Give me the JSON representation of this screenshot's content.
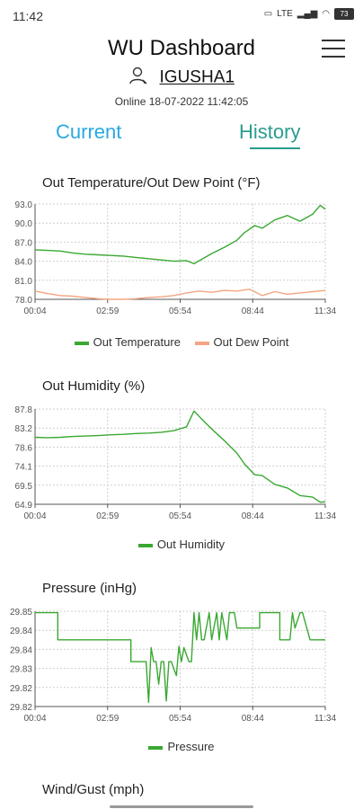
{
  "status_bar": {
    "time": "11:42",
    "signal_text": "LTE",
    "battery": "73"
  },
  "header": {
    "title": "WU Dashboard",
    "station_id": "IGUSHA1",
    "online_text": "Online 18-07-2022 11:42:05"
  },
  "tabs": [
    {
      "label": "Current"
    },
    {
      "label": "History"
    }
  ],
  "colors": {
    "temp": "#3aa832",
    "dew": "#f4a582",
    "grid": "#cfcfcf",
    "axis": "#555555",
    "tab_current": "#29a9e0",
    "tab_history": "#2a9d8f"
  },
  "sections": {
    "temp_title": "Out Temperature/Out Dew Point (°F)",
    "humidity_title": "Out Humidity (%)",
    "pressure_title": "Pressure (inHg)",
    "wind_title": "Wind/Gust (mph)"
  },
  "chart_data": [
    {
      "type": "line",
      "title": "Out Temperature/Out Dew Point (°F)",
      "x_ticks": [
        "00:04",
        "02:59",
        "05:54",
        "08:44",
        "11:34"
      ],
      "y_ticks": [
        "93.0",
        "90.0",
        "87.0",
        "84.0",
        "81.0",
        "78.0"
      ],
      "ylim": [
        78.0,
        93.0
      ],
      "grid": true,
      "legend_position": "bottom",
      "series": [
        {
          "name": "Out Temperature",
          "color": "#3aa832",
          "x": [
            0,
            0.5,
            1,
            1.5,
            2,
            2.5,
            3,
            3.5,
            4,
            4.5,
            5,
            5.5,
            6,
            6.3,
            6.6,
            7,
            7.5,
            8,
            8.3,
            8.7,
            9,
            9.5,
            10,
            10.5,
            11,
            11.3,
            11.5
          ],
          "values": [
            85.8,
            85.7,
            85.6,
            85.3,
            85.1,
            85.0,
            84.9,
            84.8,
            84.6,
            84.4,
            84.2,
            84.0,
            84.1,
            83.6,
            84.3,
            85.2,
            86.2,
            87.3,
            88.5,
            89.6,
            89.2,
            90.5,
            91.2,
            90.3,
            91.4,
            92.8,
            92.2
          ]
        },
        {
          "name": "Out Dew Point",
          "color": "#f4a582",
          "x": [
            0,
            0.5,
            1,
            1.5,
            2,
            2.5,
            3,
            3.5,
            4,
            4.5,
            5,
            5.5,
            6,
            6.5,
            7,
            7.5,
            8,
            8.5,
            9,
            9.5,
            10,
            10.5,
            11,
            11.5
          ],
          "values": [
            79.3,
            78.9,
            78.6,
            78.5,
            78.3,
            78.1,
            78.0,
            78.0,
            78.1,
            78.3,
            78.4,
            78.6,
            79.0,
            79.3,
            79.1,
            79.4,
            79.3,
            79.6,
            78.6,
            79.2,
            78.8,
            79.0,
            79.2,
            79.4
          ]
        }
      ]
    },
    {
      "type": "line",
      "title": "Out Humidity (%)",
      "x_ticks": [
        "00:04",
        "02:59",
        "05:54",
        "08:44",
        "11:34"
      ],
      "y_ticks": [
        "87.8",
        "83.2",
        "78.6",
        "74.1",
        "69.5",
        "64.9"
      ],
      "ylim": [
        64.9,
        87.8
      ],
      "grid": true,
      "legend_position": "bottom",
      "series": [
        {
          "name": "Out Humidity",
          "color": "#3aa832",
          "x": [
            0,
            0.5,
            1,
            1.5,
            2,
            2.5,
            3,
            3.5,
            4,
            4.5,
            5,
            5.5,
            6,
            6.3,
            6.6,
            7,
            7.5,
            8,
            8.3,
            8.7,
            9,
            9.5,
            10,
            10.5,
            11,
            11.3,
            11.5
          ],
          "values": [
            81.0,
            80.9,
            81.0,
            81.2,
            81.3,
            81.4,
            81.6,
            81.7,
            81.9,
            82.0,
            82.2,
            82.6,
            83.5,
            87.3,
            85.4,
            83.0,
            80.2,
            77.2,
            74.6,
            72.0,
            71.8,
            69.7,
            68.8,
            67.0,
            66.6,
            65.4,
            65.5
          ]
        }
      ]
    },
    {
      "type": "line",
      "title": "Pressure (inHg)",
      "x_ticks": [
        "00:04",
        "02:59",
        "05:54",
        "08:44",
        "11:34"
      ],
      "y_ticks": [
        "29.85",
        "29.84",
        "29.84",
        "29.83",
        "29.82",
        "29.82"
      ],
      "ylim": [
        29.818,
        29.852
      ],
      "grid": true,
      "legend_position": "bottom",
      "series": [
        {
          "name": "Pressure",
          "color": "#3aa832",
          "x": [
            0,
            0.9,
            0.9,
            3.8,
            3.8,
            4.4,
            4.5,
            4.6,
            4.7,
            4.8,
            4.9,
            5.0,
            5.1,
            5.2,
            5.3,
            5.4,
            5.6,
            5.7,
            5.8,
            5.9,
            6.1,
            6.2,
            6.3,
            6.4,
            6.5,
            6.6,
            6.7,
            6.9,
            7.0,
            7.2,
            7.3,
            7.4,
            7.6,
            7.7,
            7.9,
            8.0,
            8.9,
            8.9,
            9.7,
            9.7,
            10.1,
            10.2,
            10.3,
            10.5,
            10.6,
            10.9,
            10.9,
            11.5
          ],
          "values": [
            29.8515,
            29.8515,
            29.8418,
            29.8418,
            29.834,
            29.834,
            29.8195,
            29.839,
            29.834,
            29.834,
            29.826,
            29.834,
            29.834,
            29.82,
            29.834,
            29.834,
            29.829,
            29.8395,
            29.834,
            29.839,
            29.834,
            29.834,
            29.8515,
            29.8418,
            29.8515,
            29.8418,
            29.8418,
            29.8515,
            29.8418,
            29.8515,
            29.8418,
            29.8515,
            29.8418,
            29.8515,
            29.8515,
            29.846,
            29.846,
            29.8515,
            29.8515,
            29.8418,
            29.8418,
            29.8515,
            29.846,
            29.8515,
            29.8515,
            29.8418,
            29.8418,
            29.8418
          ]
        }
      ]
    }
  ]
}
